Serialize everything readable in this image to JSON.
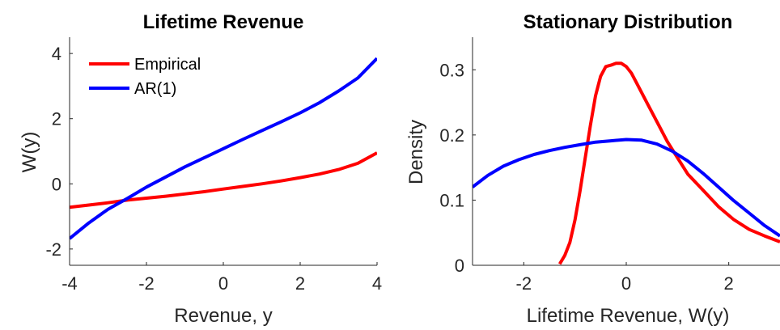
{
  "chart_data": [
    {
      "type": "line",
      "title": "Lifetime Revenue",
      "xlabel": "Revenue, y",
      "ylabel": "W(y)",
      "xlim": [
        -4,
        4
      ],
      "ylim": [
        -2.5,
        4.5
      ],
      "xticks": [
        -4,
        -2,
        0,
        2,
        4
      ],
      "yticks": [
        -2,
        0,
        2,
        4
      ],
      "xtick_labels": [
        "-4",
        "-2",
        "0",
        "2",
        "4"
      ],
      "ytick_labels": [
        "-2",
        "0",
        "2",
        "4"
      ],
      "grid": false,
      "legend_placement": "top-left",
      "series": [
        {
          "name": "Empirical",
          "color": "#ff0000",
          "x": [
            -4,
            -3.5,
            -3,
            -2.5,
            -2,
            -1.5,
            -1,
            -0.5,
            0,
            0.5,
            1,
            1.5,
            2,
            2.5,
            3,
            3.5,
            4
          ],
          "y": [
            -0.72,
            -0.65,
            -0.58,
            -0.5,
            -0.44,
            -0.38,
            -0.31,
            -0.24,
            -0.16,
            -0.08,
            0.0,
            0.09,
            0.19,
            0.3,
            0.44,
            0.63,
            0.95
          ]
        },
        {
          "name": "AR(1)",
          "color": "#0000ff",
          "x": [
            -4,
            -3.5,
            -3,
            -2.5,
            -2,
            -1.5,
            -1,
            -0.5,
            0,
            0.5,
            1,
            1.5,
            2,
            2.5,
            3,
            3.5,
            4
          ],
          "y": [
            -1.68,
            -1.2,
            -0.78,
            -0.45,
            -0.1,
            0.21,
            0.52,
            0.8,
            1.08,
            1.36,
            1.63,
            1.9,
            2.18,
            2.49,
            2.85,
            3.25,
            3.85
          ]
        }
      ]
    },
    {
      "type": "line",
      "title": "Stationary Distribution",
      "xlabel": "Lifetime Revenue, W(y)",
      "ylabel": "Density",
      "xlim": [
        -3,
        3
      ],
      "ylim": [
        0,
        0.35
      ],
      "xticks": [
        -2,
        0,
        2
      ],
      "yticks": [
        0,
        0.1,
        0.2,
        0.3
      ],
      "xtick_labels": [
        "-2",
        "0",
        "2"
      ],
      "ytick_labels": [
        "0",
        "0.1",
        "0.2",
        "0.3"
      ],
      "grid": false,
      "series": [
        {
          "name": "Empirical",
          "color": "#ff0000",
          "x": [
            -1.3,
            -1.2,
            -1.1,
            -1.0,
            -0.9,
            -0.8,
            -0.7,
            -0.6,
            -0.5,
            -0.4,
            -0.3,
            -0.2,
            -0.1,
            0.0,
            0.1,
            0.2,
            0.4,
            0.6,
            0.8,
            1.0,
            1.2,
            1.5,
            1.8,
            2.1,
            2.4,
            2.7,
            3.0
          ],
          "y": [
            0.002,
            0.015,
            0.035,
            0.07,
            0.115,
            0.165,
            0.215,
            0.26,
            0.29,
            0.305,
            0.307,
            0.31,
            0.31,
            0.305,
            0.295,
            0.28,
            0.25,
            0.22,
            0.19,
            0.165,
            0.14,
            0.115,
            0.09,
            0.07,
            0.055,
            0.045,
            0.036
          ]
        },
        {
          "name": "AR(1)",
          "color": "#0000ff",
          "x": [
            -3.0,
            -2.7,
            -2.4,
            -2.1,
            -1.8,
            -1.5,
            -1.2,
            -0.9,
            -0.6,
            -0.3,
            0.0,
            0.3,
            0.6,
            0.9,
            1.2,
            1.5,
            1.8,
            2.1,
            2.4,
            2.7,
            3.0
          ],
          "y": [
            0.12,
            0.138,
            0.152,
            0.162,
            0.17,
            0.176,
            0.181,
            0.185,
            0.189,
            0.191,
            0.193,
            0.192,
            0.186,
            0.175,
            0.16,
            0.141,
            0.12,
            0.099,
            0.08,
            0.061,
            0.045
          ]
        }
      ]
    }
  ]
}
